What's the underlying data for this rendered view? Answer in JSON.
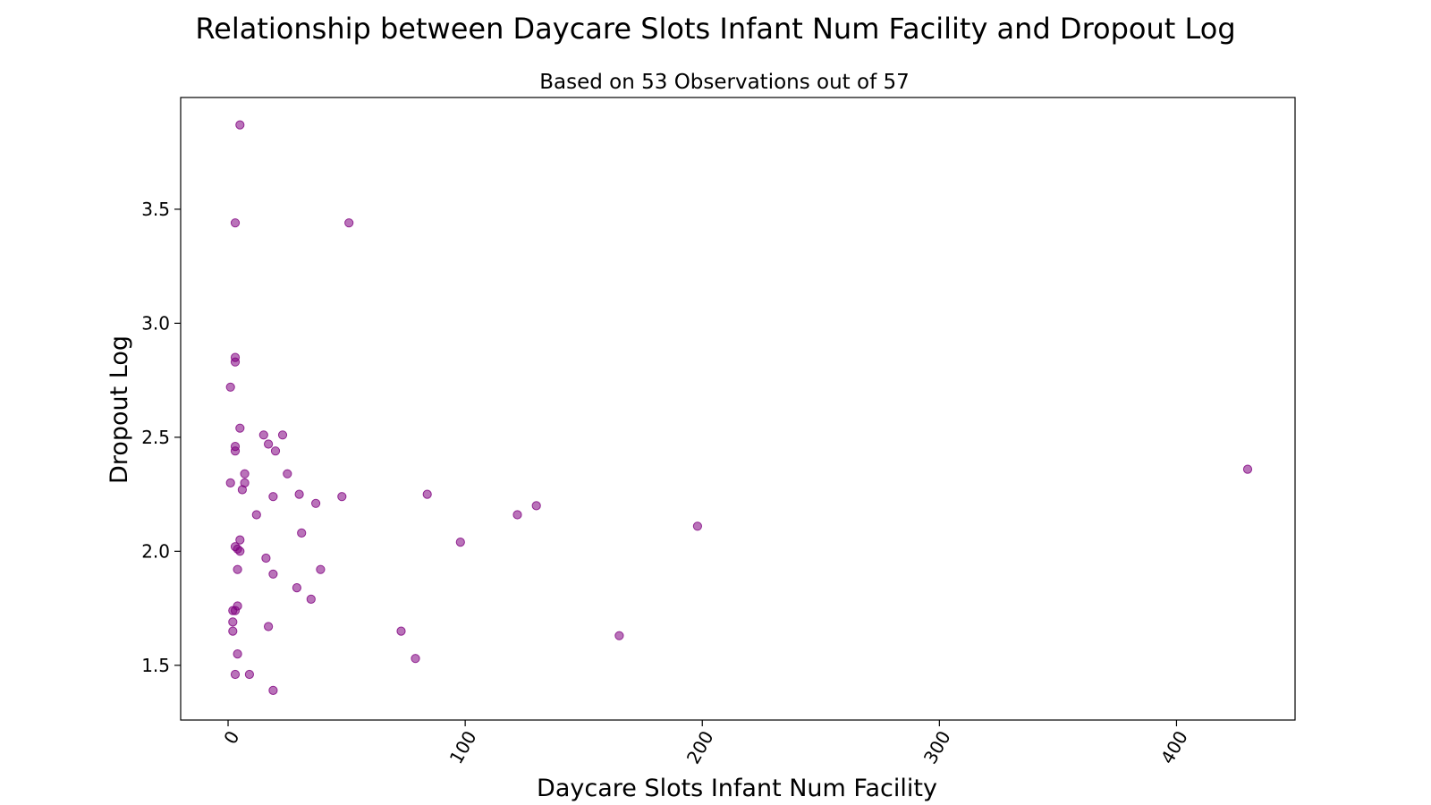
{
  "chart_data": {
    "type": "scatter",
    "title": "Relationship between Daycare Slots Infant Num Facility and Dropout Log",
    "subtitle": "Based on 53 Observations out of 57",
    "xlabel": "Daycare Slots Infant Num Facility",
    "ylabel": "Dropout Log",
    "xlim": [
      -20,
      450
    ],
    "ylim": [
      1.26,
      3.99
    ],
    "xticks": [
      0,
      100,
      200,
      300,
      400
    ],
    "yticks": [
      1.5,
      2.0,
      2.5,
      3.0,
      3.5
    ],
    "xtick_labels": [
      "0",
      "100",
      "200",
      "300",
      "400"
    ],
    "ytick_labels": [
      "1.5",
      "2.0",
      "2.5",
      "3.0",
      "3.5"
    ],
    "grid": false,
    "color": "#800080",
    "points": [
      [
        5,
        3.87
      ],
      [
        3,
        3.44
      ],
      [
        51,
        3.44
      ],
      [
        3,
        2.85
      ],
      [
        3,
        2.83
      ],
      [
        1,
        2.72
      ],
      [
        5,
        2.54
      ],
      [
        15,
        2.51
      ],
      [
        23,
        2.51
      ],
      [
        17,
        2.47
      ],
      [
        3,
        2.46
      ],
      [
        3,
        2.44
      ],
      [
        20,
        2.44
      ],
      [
        430,
        2.36
      ],
      [
        7,
        2.34
      ],
      [
        25,
        2.34
      ],
      [
        1,
        2.3
      ],
      [
        7,
        2.3
      ],
      [
        6,
        2.27
      ],
      [
        30,
        2.25
      ],
      [
        84,
        2.25
      ],
      [
        19,
        2.24
      ],
      [
        48,
        2.24
      ],
      [
        37,
        2.21
      ],
      [
        130,
        2.2
      ],
      [
        12,
        2.16
      ],
      [
        122,
        2.16
      ],
      [
        198,
        2.11
      ],
      [
        31,
        2.08
      ],
      [
        5,
        2.05
      ],
      [
        98,
        2.04
      ],
      [
        3,
        2.02
      ],
      [
        4,
        2.01
      ],
      [
        5,
        2.0
      ],
      [
        16,
        1.97
      ],
      [
        4,
        1.92
      ],
      [
        39,
        1.92
      ],
      [
        19,
        1.9
      ],
      [
        29,
        1.84
      ],
      [
        35,
        1.79
      ],
      [
        4,
        1.76
      ],
      [
        2,
        1.74
      ],
      [
        3,
        1.74
      ],
      [
        2,
        1.69
      ],
      [
        17,
        1.67
      ],
      [
        2,
        1.65
      ],
      [
        73,
        1.65
      ],
      [
        165,
        1.63
      ],
      [
        4,
        1.55
      ],
      [
        79,
        1.53
      ],
      [
        3,
        1.46
      ],
      [
        9,
        1.46
      ],
      [
        19,
        1.39
      ]
    ]
  }
}
